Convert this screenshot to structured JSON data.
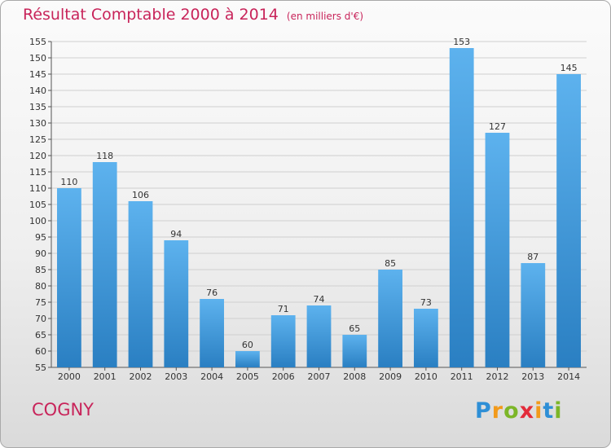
{
  "header": {
    "title": "Résultat Comptable 2000 à 2014",
    "subtitle": "(en milliers d'€)"
  },
  "commune": "COGNY",
  "logo": {
    "text": "Proxiti"
  },
  "colors": {
    "bar": "#3f9ee3",
    "accent": "#c8245a"
  },
  "chart_data": {
    "type": "bar",
    "title": "Résultat Comptable 2000 à 2014",
    "subtitle": "(en milliers d'€)",
    "categories": [
      "2000",
      "2001",
      "2002",
      "2003",
      "2004",
      "2005",
      "2006",
      "2007",
      "2008",
      "2009",
      "2010",
      "2011",
      "2012",
      "2013",
      "2014"
    ],
    "values": [
      110,
      118,
      106,
      94,
      76,
      60,
      71,
      74,
      65,
      85,
      73,
      153,
      127,
      87,
      145
    ],
    "ylim": [
      55,
      155
    ],
    "yticks": [
      55,
      60,
      65,
      70,
      75,
      80,
      85,
      90,
      95,
      100,
      105,
      110,
      115,
      120,
      125,
      130,
      135,
      140,
      145,
      150,
      155
    ],
    "grid": true,
    "data_labels": true
  }
}
